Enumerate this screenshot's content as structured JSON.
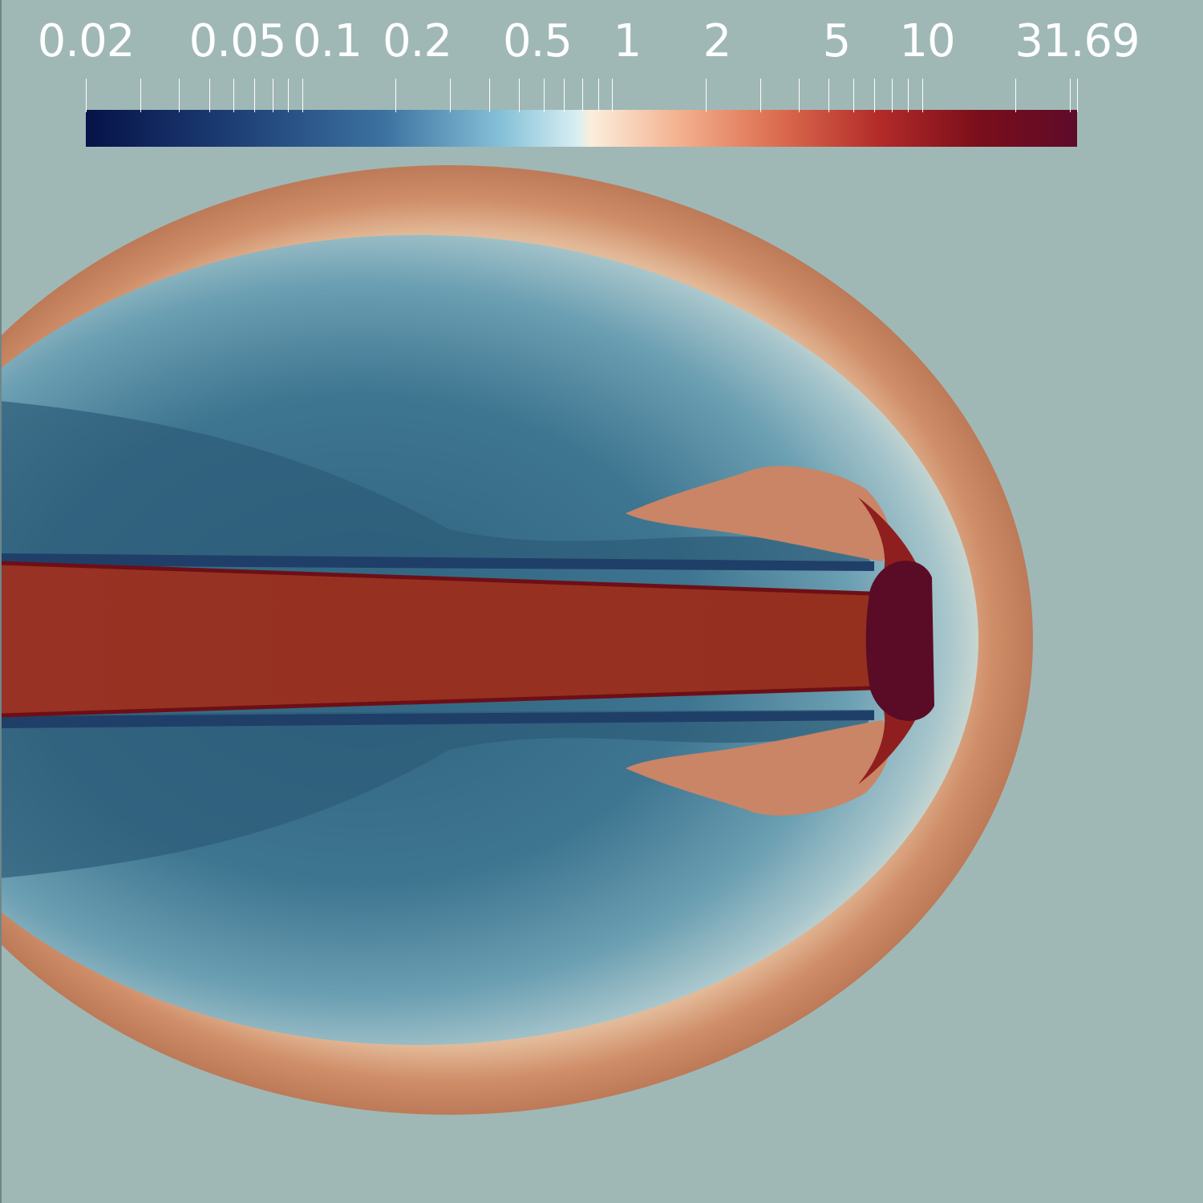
{
  "colorbar": {
    "scale": "log",
    "labels": [
      "0.02",
      "0.05",
      "0.1",
      "0.2",
      "0.5",
      "1",
      "2",
      "5",
      "10",
      "31.69"
    ],
    "min": 0.02,
    "max": 31.69,
    "colormap": [
      "#061248",
      "#3c71a0",
      "#d7eef2",
      "#fbeedd",
      "#db6b4e",
      "#7a0e1a",
      "#5e0b2a"
    ]
  },
  "background_color": "#9fb8b6",
  "figure": {
    "description_colors": {
      "cocoon": "#3f7890",
      "shell": "#c5835e",
      "jet": "#973224",
      "hotspot": "#5a0b26"
    }
  }
}
